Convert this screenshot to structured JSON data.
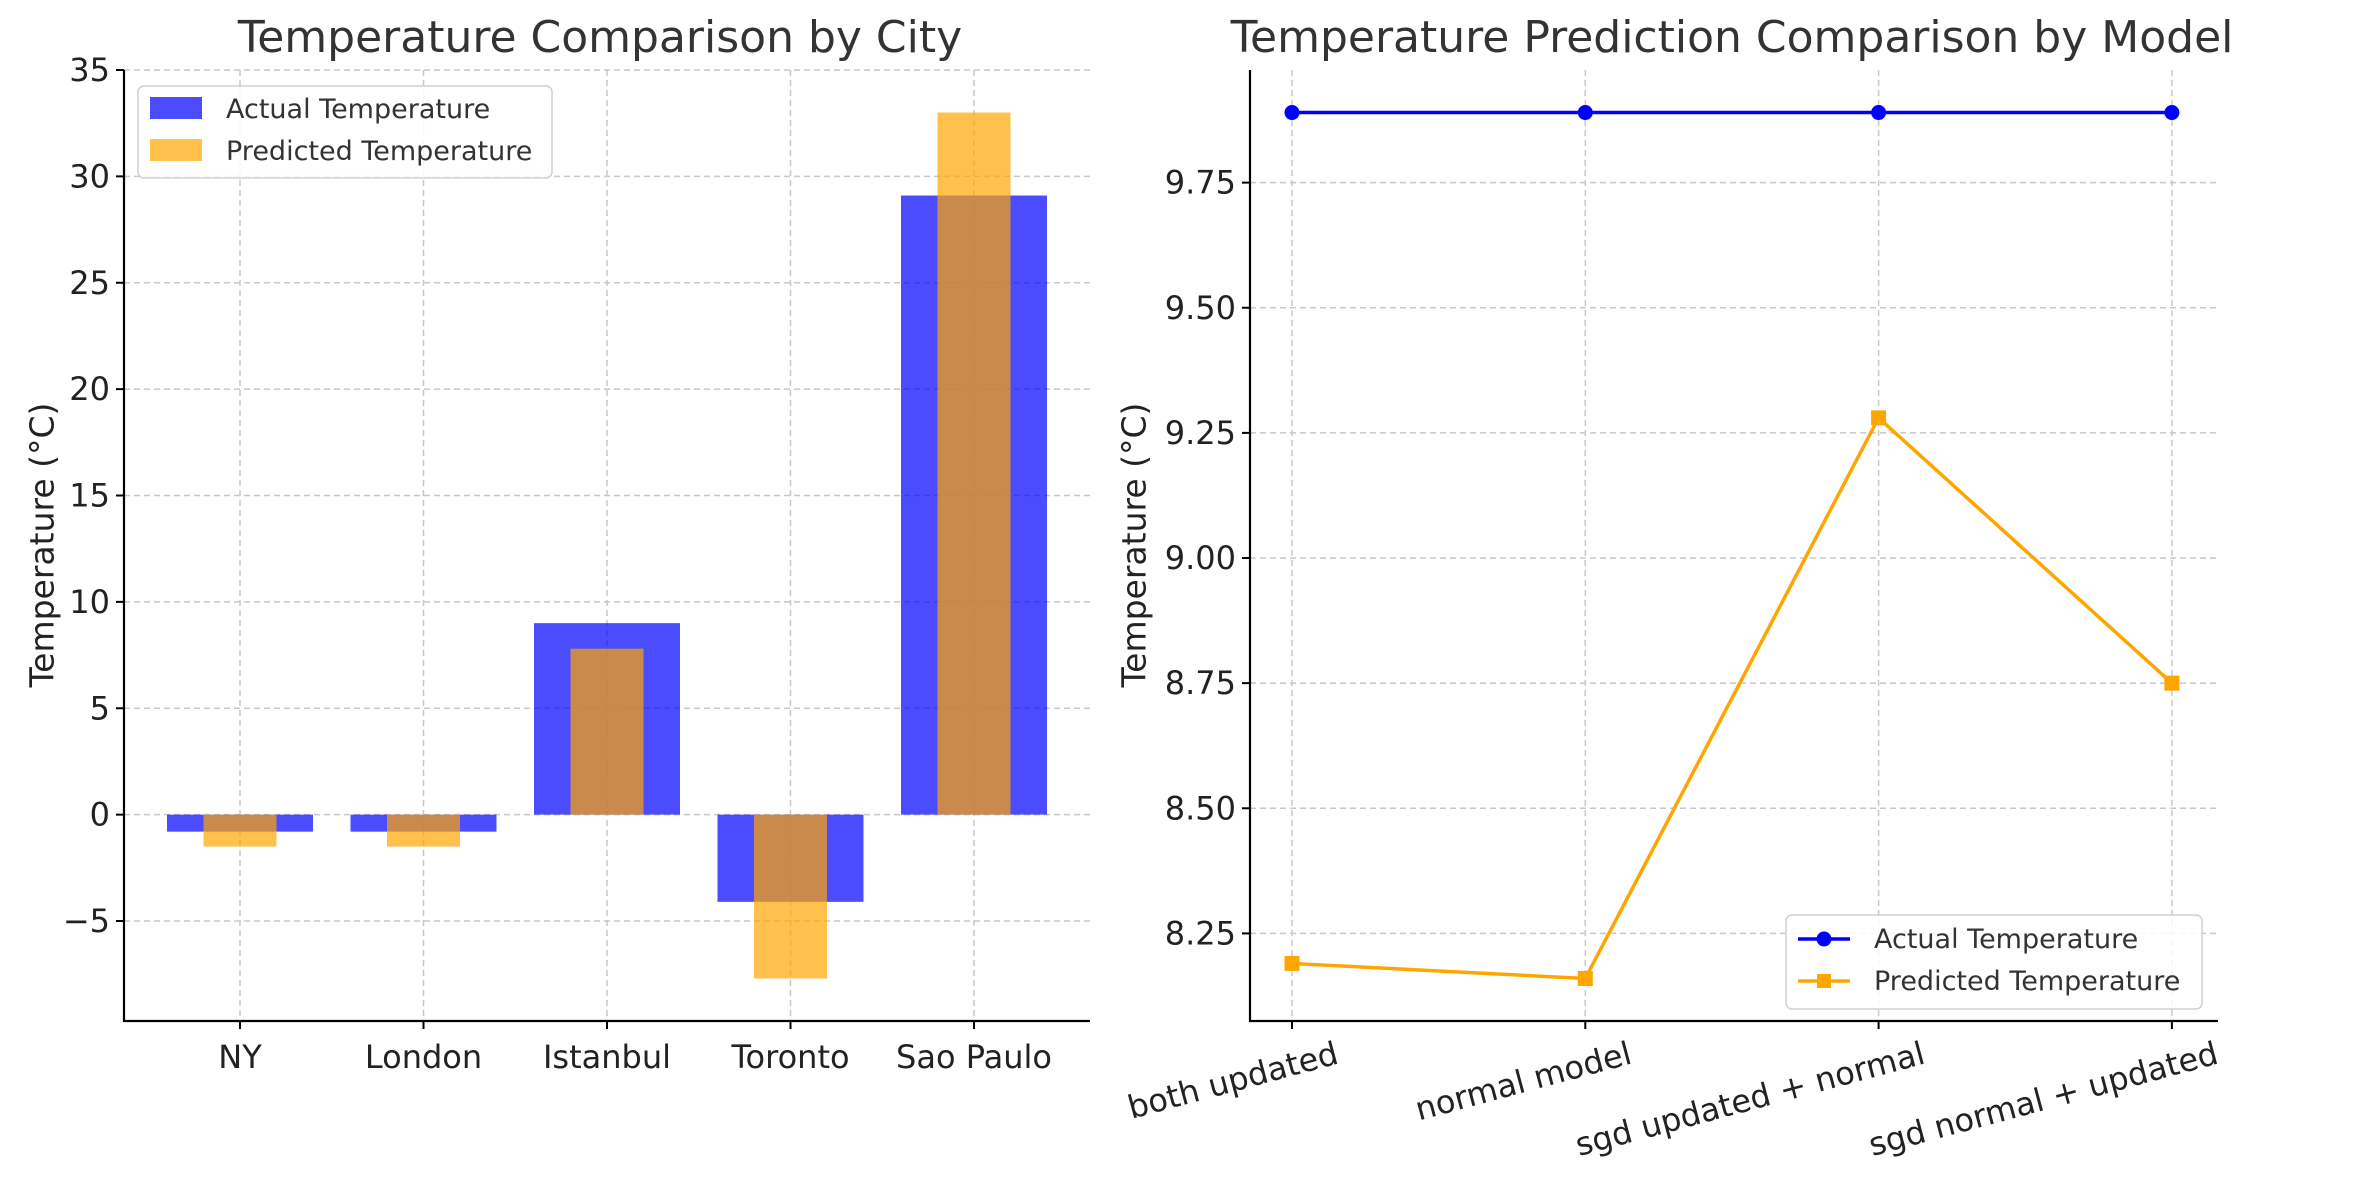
{
  "chart_data": [
    {
      "type": "bar",
      "title": "Temperature Comparison by City",
      "xlabel": "",
      "ylabel": "Temperature (°C)",
      "categories": [
        "NY",
        "London",
        "Istanbul",
        "Toronto",
        "Sao Paulo"
      ],
      "series": [
        {
          "name": "Actual Temperature",
          "color": "#0000ff",
          "opacity": 0.7,
          "values": [
            -0.8,
            -0.8,
            9.0,
            -4.1,
            29.1
          ]
        },
        {
          "name": "Predicted Temperature",
          "color": "#ffa500",
          "opacity": 0.7,
          "values": [
            -1.5,
            -1.5,
            7.8,
            -7.7,
            33.0
          ]
        }
      ],
      "ylim": [
        -9.7,
        35
      ],
      "yticks": [
        -5,
        0,
        5,
        10,
        15,
        20,
        25,
        30,
        35
      ],
      "ytick_labels": [
        "−5",
        "0",
        "5",
        "10",
        "15",
        "20",
        "25",
        "30",
        "35"
      ],
      "grid": true,
      "legend": "top-left"
    },
    {
      "type": "line",
      "title": "Temperature Prediction Comparison by Model",
      "xlabel": "",
      "ylabel": "Temperature (°C)",
      "categories": [
        "both updated",
        "normal model",
        "sgd updated + normal",
        "sgd normal + updated"
      ],
      "series": [
        {
          "name": "Actual Temperature",
          "color": "#0000ff",
          "marker": "circle",
          "values": [
            9.89,
            9.89,
            9.89,
            9.89
          ]
        },
        {
          "name": "Predicted Temperature",
          "color": "#ffa500",
          "marker": "square",
          "values": [
            8.19,
            8.16,
            9.28,
            8.75
          ]
        }
      ],
      "ylim": [
        8.075,
        9.975
      ],
      "yticks": [
        8.25,
        8.5,
        8.75,
        9.0,
        9.25,
        9.5,
        9.75
      ],
      "ytick_labels": [
        "8.25",
        "8.50",
        "8.75",
        "9.00",
        "9.25",
        "9.50",
        "9.75"
      ],
      "grid": true,
      "legend": "bottom-right",
      "xtick_rotation": 15
    }
  ]
}
